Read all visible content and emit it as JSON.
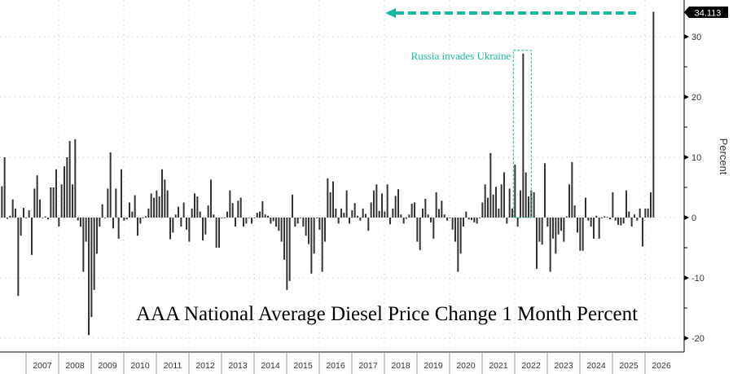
{
  "chart_data": {
    "type": "bar",
    "title": "AAA National Average Diesel Price Change 1 Month Percent",
    "ylabel": "Percent",
    "xlabel": "",
    "ylim": [
      -21,
      36
    ],
    "yticks": [
      30,
      20,
      10,
      0,
      -10,
      -20
    ],
    "x_start": "2006-03",
    "frequency": "monthly",
    "year_labels": [
      "2007",
      "2008",
      "2009",
      "2010",
      "2011",
      "2012",
      "2013",
      "2014",
      "2015",
      "2016",
      "2017",
      "2018",
      "2019",
      "2020",
      "2021",
      "2022",
      "2023",
      "2024",
      "2025",
      "2026"
    ],
    "grid": true,
    "last_value_label": "34.113",
    "annotation": "Russia invades Ukraine",
    "values": [
      5.2,
      10,
      -0.2,
      0.3,
      3,
      1.5,
      -13,
      -3,
      1.6,
      0,
      1.2,
      -6.2,
      4.8,
      7,
      3,
      0,
      0.2,
      -0.3,
      5,
      5,
      8,
      -1.5,
      5.5,
      8.5,
      10,
      12.7,
      5.5,
      13,
      -0.5,
      -1.5,
      -9,
      -4,
      -19.5,
      -16.5,
      -12,
      -6,
      -1.5,
      2.2,
      0,
      4.8,
      10.8,
      -1.8,
      4.8,
      -3.5,
      8,
      -0.5,
      -0.3,
      2.5,
      1,
      3.7,
      -3,
      -1,
      0,
      0.2,
      1.5,
      4,
      3.3,
      4.5,
      3.5,
      8,
      6.3,
      4.5,
      -3.6,
      -2.5,
      0.5,
      1.8,
      -1.5,
      2.5,
      -2,
      -4,
      1.5,
      4,
      3.5,
      1,
      -3.8,
      -2.8,
      2,
      6.3,
      0.5,
      -5,
      -5,
      0,
      0,
      1,
      4.5,
      2.4,
      -1.5,
      2.8,
      3.3,
      -1.5,
      -1,
      0,
      -1,
      0,
      0.8,
      1,
      2.7,
      0.5,
      0.3,
      -1,
      -0.6,
      -1.5,
      -2.2,
      -4,
      -7,
      -12,
      -10.5,
      3.8,
      -1.5,
      -1,
      0,
      -1.5,
      -3,
      -4.4,
      -9.3,
      -6,
      0,
      -2,
      -9,
      -4,
      6.5,
      4.2,
      6,
      1.5,
      -1,
      1.5,
      0.8,
      4.5,
      -1,
      1.2,
      2.4,
      0.3,
      -0.5,
      1.5,
      0.6,
      -2.2,
      2.5,
      4.5,
      5.5,
      1.1,
      4,
      1,
      5.5,
      -1.1,
      1.5,
      3.6,
      4.7,
      0.5,
      -1,
      -0.2,
      0.5,
      2.3,
      2.5,
      -4,
      -5.4,
      1.5,
      3.1,
      0.5,
      -0.8,
      -3.5,
      4.2,
      1.4,
      2.8,
      0.5,
      -0.5,
      0,
      -2,
      -4,
      -9,
      -6,
      -1.5,
      1,
      -0.3,
      -0.4,
      -0.8,
      -1,
      0,
      2.5,
      5.5,
      3.3,
      10.7,
      3.8,
      5.1,
      1.5,
      5.5,
      7.5,
      -1,
      4.8,
      1.5,
      8.8,
      -1.5,
      4.5,
      27.2,
      7.5,
      3.5,
      4.5,
      4.2,
      -8.5,
      -4,
      -4.5,
      9,
      -1.5,
      -9,
      -3.5,
      -6,
      -2.8,
      -2.2,
      -4,
      0.2,
      5.5,
      9.2,
      2,
      -2.5,
      -5.5,
      -5.5,
      3.3,
      -0.5,
      -1.5,
      -3.5,
      0.3,
      -3.5,
      0,
      0.2,
      0.1,
      -0.3,
      4.2,
      -0.5,
      -1.2,
      -1.3,
      -1,
      4.5,
      1,
      -1.5,
      0.5,
      -0.5,
      1.5,
      -4.8,
      1.5,
      1.5,
      4.2,
      34.113
    ],
    "colors": {
      "bar": "#333333",
      "annotation": "#17b89f",
      "label_bg": "#000000"
    }
  }
}
